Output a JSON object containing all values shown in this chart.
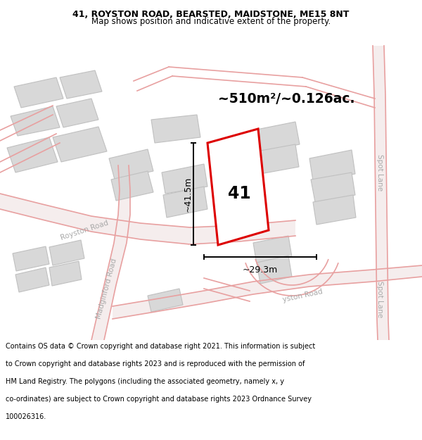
{
  "title_line1": "41, ROYSTON ROAD, BEARSTED, MAIDSTONE, ME15 8NT",
  "title_line2": "Map shows position and indicative extent of the property.",
  "area_text": "~510m²/~0.126ac.",
  "label_41": "41",
  "dim_vertical": "~41.5m",
  "dim_horizontal": "~29.3m",
  "road_label_royston": "Royston Road",
  "road_label_madginford": "Madginford Road",
  "road_label_royston2": "yston Road",
  "road_label_spot1": "Spot Lane",
  "road_label_spot2": "Spot Lane",
  "footer_lines": [
    "Contains OS data © Crown copyright and database right 2021. This information is subject",
    "to Crown copyright and database rights 2023 and is reproduced with the permission of",
    "HM Land Registry. The polygons (including the associated geometry, namely x, y",
    "co-ordinates) are subject to Crown copyright and database rights 2023 Ordnance Survey",
    "100026316."
  ],
  "bg_color": "#f0f0f0",
  "map_bg": "#f8f8f8",
  "road_color": "#e8a0a0",
  "road_fill": "#f5eded",
  "building_fill": "#d8d8d8",
  "building_edge": "#c0c0c0",
  "highlight_color": "#dd0000",
  "highlight_fill": "#ffffff",
  "dim_color": "#000000",
  "text_color": "#000000",
  "road_label_color": "#aaaaaa",
  "footer_color": "#000000",
  "header_bg": "#ffffff",
  "footer_bg": "#ffffff"
}
